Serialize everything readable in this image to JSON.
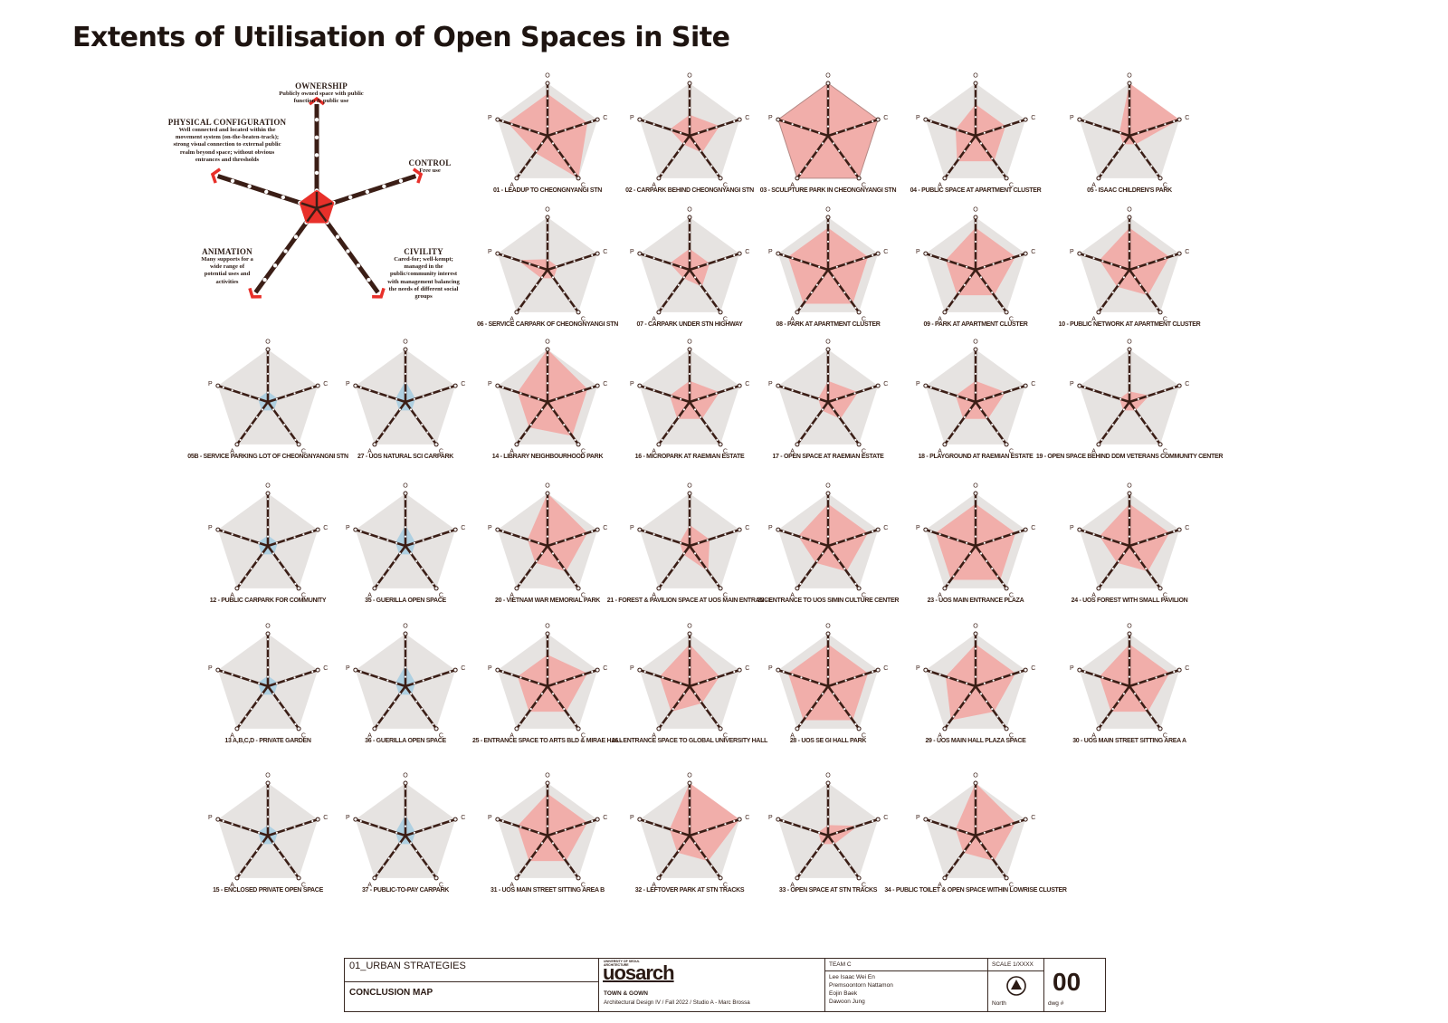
{
  "title": "Extents of Utilisation of Open Spaces in Site",
  "legend": {
    "ownership": {
      "heading": "OWNERSHIP",
      "desc": [
        "Publicly owned space with public",
        "function & public use"
      ]
    },
    "physical": {
      "heading": "PHYSICAL CONFIGURATION",
      "desc": [
        "Well connected and located within the",
        "movement system (on-the-beaten-track);",
        "strong visual connection to external public",
        "realm beyond space; without obvious",
        "entrances and thresholds"
      ]
    },
    "control": {
      "heading": "CONTROL",
      "desc": [
        "Free use"
      ]
    },
    "animation": {
      "heading": "ANIMATION",
      "desc": [
        "Many supports for a",
        "wide range of",
        "potential uses and",
        "activities"
      ]
    },
    "civility": {
      "heading": "CIVILITY",
      "desc": [
        "Cared-for; well-kempt;",
        "managed in the",
        "public/community interest",
        "with management balancing",
        "the needs of different social",
        "groups"
      ]
    }
  },
  "axis_letters": [
    "O",
    "C",
    "C",
    "A",
    "P"
  ],
  "colors": {
    "pink": "#f2a7a4",
    "blue": "#a9cde1",
    "grey": "#e6e3e1",
    "dark": "#3b1e16",
    "red": "#e8302a"
  },
  "chart_data": {
    "type": "radar",
    "axes": [
      "Ownership",
      "Control",
      "Civility",
      "Animation",
      "Physical Configuration"
    ],
    "scale": [
      0,
      5
    ],
    "charts": [
      {
        "label": "01 - LEADUP TO CHEONGNYANGI STN",
        "color": "pink",
        "values": [
          4,
          4,
          5,
          2,
          4
        ]
      },
      {
        "label": "02 - CARPARK BEHIND CHEONGNYANGI STN",
        "color": "pink",
        "values": [
          2,
          3,
          2,
          1,
          2
        ]
      },
      {
        "label": "03 - SCULPTURE PARK IN CHEONGNYANGI STN",
        "color": "pink",
        "values": [
          5,
          5,
          5,
          5,
          5
        ]
      },
      {
        "label": "04 - PUBLIC SPACE AT APARTMENT CLUSTER",
        "color": "pink",
        "values": [
          3,
          3,
          3,
          3,
          2
        ]
      },
      {
        "label": "05 - ISAAC CHILDREN'S PARK",
        "color": "pink",
        "values": [
          5,
          5,
          1,
          1,
          1
        ]
      },
      {
        "label": "06 - SERVICE CARPARK OF CHEONGNYANGI STN",
        "color": "pink",
        "values": [
          1,
          1,
          1,
          1,
          3
        ]
      },
      {
        "label": "07 - CARPARK UNDER STN HIGHWAY",
        "color": "pink",
        "values": [
          2,
          2,
          2,
          1,
          2
        ]
      },
      {
        "label": "08 - PARK AT APARTMENT CLUSTER",
        "color": "pink",
        "values": [
          4,
          4,
          4,
          4,
          4
        ]
      },
      {
        "label": "09 - PARK AT APARTMENT CLUSTER",
        "color": "pink",
        "values": [
          4,
          4,
          3,
          3,
          3
        ]
      },
      {
        "label": "10 - PUBLIC NETWORK AT APARTMENT CLUSTER",
        "color": "pink",
        "values": [
          4,
          4,
          3,
          2,
          3
        ]
      },
      {
        "label": "05B - SERVICE PARKING LOT OF CHEONGNYANGNI STN",
        "color": "blue",
        "values": [
          1,
          1,
          1,
          1,
          1
        ]
      },
      {
        "label": "27 - UOS NATURAL SCI CARPARK",
        "color": "blue",
        "values": [
          2,
          1,
          1,
          1,
          1
        ]
      },
      {
        "label": "14 - LIBRARY NEIGHBOURHOOD PARK",
        "color": "pink",
        "values": [
          5,
          4,
          4,
          3,
          3
        ]
      },
      {
        "label": "16 - MICROPARK AT RAEMIAN ESTATE",
        "color": "pink",
        "values": [
          2,
          3,
          2,
          2,
          2
        ]
      },
      {
        "label": "17 - OPEN SPACE AT RAEMIAN ESTATE",
        "color": "pink",
        "values": [
          2,
          3,
          2,
          1,
          1
        ]
      },
      {
        "label": "18 - PLAYGROUND AT RAEMIAN ESTATE",
        "color": "pink",
        "values": [
          2,
          3,
          2,
          2,
          2
        ]
      },
      {
        "label": "19 - OPEN SPACE BEHIND DDM VETERANS COMMUNITY CENTER",
        "color": "pink",
        "values": [
          1,
          2,
          1,
          1,
          1
        ]
      },
      {
        "label": "12 - PUBLIC CARPARK FOR COMMUNITY",
        "color": "blue",
        "values": [
          1,
          1,
          1,
          1,
          1
        ]
      },
      {
        "label": "35 - GUERILLA OPEN SPACE",
        "color": "blue",
        "values": [
          2,
          1,
          1,
          1,
          1
        ]
      },
      {
        "label": "20 - VIETNAM WAR MEMORIAL PARK",
        "color": "pink",
        "values": [
          5,
          4,
          3,
          2,
          2
        ]
      },
      {
        "label": "21 - FOREST & PAVILION SPACE AT UOS MAIN ENTRANCE",
        "color": "pink",
        "values": [
          2,
          2,
          3,
          1,
          1
        ]
      },
      {
        "label": "22 - ENTRANCE TO UOS SIMIN CULTURE CENTER",
        "color": "pink",
        "values": [
          4,
          4,
          3,
          2,
          3
        ]
      },
      {
        "label": "23 - UOS MAIN ENTRANCE PLAZA",
        "color": "pink",
        "values": [
          4,
          4,
          4,
          4,
          4
        ]
      },
      {
        "label": "24 - UOS FOREST WITH SMALL PAVILION",
        "color": "pink",
        "values": [
          4,
          4,
          3,
          2,
          3
        ]
      },
      {
        "label": "13 A,B,C,D - PRIVATE GARDEN",
        "color": "blue",
        "values": [
          1,
          1,
          1,
          1,
          1
        ]
      },
      {
        "label": "36 - GUERILLA OPEN SPACE",
        "color": "blue",
        "values": [
          2,
          1,
          1,
          1,
          1
        ]
      },
      {
        "label": "25 - ENTRANCE SPACE TO ARTS BLD & MIRAE HALL",
        "color": "pink",
        "values": [
          3,
          4,
          3,
          3,
          3
        ]
      },
      {
        "label": "26 - ENTRANCE SPACE TO GLOBAL UNIVERSITY HALL",
        "color": "pink",
        "values": [
          4,
          3,
          2,
          3,
          3
        ]
      },
      {
        "label": "28 - UOS SE GI HALL PARK",
        "color": "pink",
        "values": [
          4,
          4,
          4,
          4,
          4
        ]
      },
      {
        "label": "29 - UOS MAIN HALL PLAZA SPACE",
        "color": "pink",
        "values": [
          4,
          4,
          3,
          4,
          3
        ]
      },
      {
        "label": "30 - UOS MAIN STREET SITTING AREA A",
        "color": "pink",
        "values": [
          4,
          4,
          3,
          3,
          3
        ]
      },
      {
        "label": "15 - ENCLOSED PRIVATE OPEN SPACE",
        "color": "blue",
        "values": [
          1,
          1,
          1,
          1,
          1
        ]
      },
      {
        "label": "37 - PUBLIC-TO-PAY CARPARK",
        "color": "blue",
        "values": [
          2,
          1,
          1,
          1,
          1
        ]
      },
      {
        "label": "31 - UOS MAIN STREET SITTING AREA B",
        "color": "pink",
        "values": [
          4,
          4,
          3,
          3,
          3
        ]
      },
      {
        "label": "32 - LEFTOVER PARK AT STN TRACKS",
        "color": "pink",
        "values": [
          5,
          5,
          3,
          2,
          2
        ]
      },
      {
        "label": "33 - OPEN SPACE AT STN TRACKS",
        "color": "pink",
        "values": [
          1,
          3,
          1,
          1,
          1
        ]
      },
      {
        "label": "34 - PUBLIC TOILET & OPEN SPACE WITHIN LOWRISE CLUSTER",
        "color": "pink",
        "values": [
          5,
          4,
          3,
          2,
          2
        ]
      }
    ]
  },
  "titleblock": {
    "section": "01_URBAN STRATEGIES",
    "map_title": "CONCLUSION MAP",
    "university": "UNIVERSITY OF SEOUL ARCHITECTURE",
    "logo": "uosarch",
    "course": "TOWN & GOWN",
    "course_detail": "Architectural Design IV / Fall 2022 / Studio A - Marc Brossa",
    "team_label": "TEAM C",
    "members": [
      "Lee Isaac Wei En",
      "Premsoontorn Nattamon",
      "Eojin Baek",
      "Dawoon Jung"
    ],
    "scale": "SCALE 1/XXXX",
    "north": "North",
    "dwg_number": "00",
    "dwg_label": "dwg #"
  }
}
